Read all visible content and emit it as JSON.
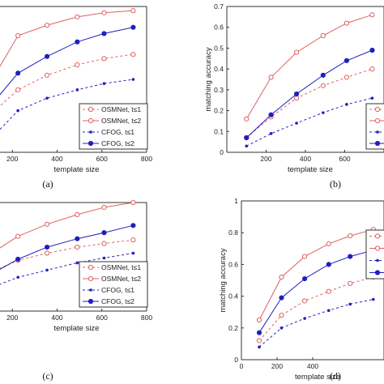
{
  "figure": {
    "panel_captions": [
      "(a)",
      "(b)",
      "(c)",
      "(d)"
    ]
  },
  "colors": {
    "osmnet": "#e06060",
    "cfog": "#2020c0"
  },
  "chart_data": [
    {
      "type": "line",
      "panel": "(a)",
      "xlabel": "template size",
      "ylabel": "",
      "xlim": [
        0,
        800
      ],
      "ylim": [
        0.3,
        1.0
      ],
      "xticks": [
        200,
        400,
        600,
        800
      ],
      "yticks": [],
      "grid": false,
      "legend_position": "bottom-right",
      "x": [
        100,
        225,
        355,
        490,
        610,
        740
      ],
      "series": [
        {
          "name": "OSMNet, t≤1",
          "values": [
            0.48,
            0.6,
            0.67,
            0.72,
            0.75,
            0.77
          ]
        },
        {
          "name": "OSMNet, t≤2",
          "values": [
            0.63,
            0.86,
            0.91,
            0.95,
            0.97,
            0.98
          ]
        },
        {
          "name": "CFOG, t≤1",
          "values": [
            0.36,
            0.5,
            0.56,
            0.6,
            0.63,
            0.65
          ]
        },
        {
          "name": "CFOG, t≤2",
          "values": [
            0.52,
            0.68,
            0.76,
            0.83,
            0.87,
            0.9
          ]
        }
      ]
    },
    {
      "type": "line",
      "panel": "(b)",
      "xlabel": "template size",
      "ylabel": "matching accuracy",
      "xlim": [
        0,
        800
      ],
      "ylim": [
        0,
        0.7
      ],
      "xticks": [
        200,
        400,
        600
      ],
      "yticks": [
        0,
        0.1,
        0.2,
        0.3,
        0.4,
        0.5,
        0.6,
        0.7
      ],
      "grid": false,
      "legend_position": "bottom-right",
      "x": [
        100,
        225,
        355,
        490,
        610,
        740
      ],
      "series": [
        {
          "name": "OSMNet, t≤1",
          "values": [
            0.07,
            0.17,
            0.26,
            0.32,
            0.36,
            0.4
          ]
        },
        {
          "name": "OSMNet, t≤2",
          "values": [
            0.16,
            0.36,
            0.48,
            0.56,
            0.62,
            0.66
          ]
        },
        {
          "name": "CFOG, t≤1",
          "values": [
            0.03,
            0.09,
            0.14,
            0.19,
            0.23,
            0.26
          ]
        },
        {
          "name": "CFOG, t≤2",
          "values": [
            0.07,
            0.18,
            0.28,
            0.37,
            0.44,
            0.49
          ]
        }
      ]
    },
    {
      "type": "line",
      "panel": "(c)",
      "xlabel": "template size",
      "ylabel": "",
      "xlim": [
        0,
        800
      ],
      "ylim": [
        0,
        0.9
      ],
      "xticks": [
        200,
        400,
        600,
        800
      ],
      "yticks": [],
      "grid": false,
      "legend_position": "bottom-right",
      "x": [
        100,
        225,
        355,
        490,
        610,
        740
      ],
      "series": [
        {
          "name": "OSMNet, t≤1",
          "values": [
            0.32,
            0.42,
            0.48,
            0.53,
            0.56,
            0.59
          ]
        },
        {
          "name": "OSMNet, t≤2",
          "values": [
            0.47,
            0.62,
            0.72,
            0.8,
            0.86,
            0.9
          ]
        },
        {
          "name": "CFOG, t≤1",
          "values": [
            0.19,
            0.28,
            0.34,
            0.4,
            0.44,
            0.48
          ]
        },
        {
          "name": "CFOG, t≤2",
          "values": [
            0.3,
            0.43,
            0.53,
            0.6,
            0.65,
            0.71
          ]
        }
      ]
    },
    {
      "type": "line",
      "panel": "(d)",
      "xlabel": "template size",
      "ylabel": "matching accuracy",
      "xlim": [
        0,
        800
      ],
      "ylim": [
        0,
        1
      ],
      "xticks": [
        0,
        200,
        400
      ],
      "yticks": [
        0,
        0.2,
        0.4,
        0.6,
        0.8,
        1
      ],
      "grid": false,
      "legend_position": "bottom-right",
      "x": [
        100,
        225,
        355,
        490,
        610,
        740
      ],
      "series": [
        {
          "name": "OSMNet, t≤1",
          "values": [
            0.12,
            0.28,
            0.37,
            0.43,
            0.48,
            0.52
          ]
        },
        {
          "name": "OSMNet, t≤2",
          "values": [
            0.25,
            0.52,
            0.65,
            0.73,
            0.78,
            0.82
          ]
        },
        {
          "name": "CFOG, t≤1",
          "values": [
            0.08,
            0.2,
            0.26,
            0.31,
            0.35,
            0.38
          ]
        },
        {
          "name": "CFOG, t≤2",
          "values": [
            0.17,
            0.39,
            0.51,
            0.6,
            0.65,
            0.69
          ]
        }
      ]
    }
  ]
}
